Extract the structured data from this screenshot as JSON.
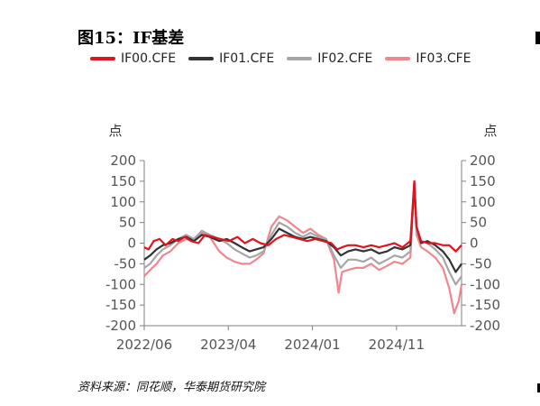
{
  "header": {
    "title": "图15：IF基差"
  },
  "footer": {
    "source": "资料来源：同花顺，华泰期货研究院"
  },
  "chart_data": {
    "type": "line",
    "title": "图15：IF基差",
    "left_unit": "点",
    "right_unit": "点",
    "ylim": [
      -200,
      200
    ],
    "y_ticks": [
      200,
      150,
      100,
      50,
      0,
      -50,
      -100,
      -150,
      -200
    ],
    "x_ticks": [
      "2022/06",
      "2023/04",
      "2024/01",
      "2024/11"
    ],
    "x_domain": [
      "2022-05",
      "2025-03"
    ],
    "legend_position": "top",
    "grid": false,
    "series": [
      {
        "name": "IF00.CFE",
        "color": "#e0141e",
        "points": [
          [
            "2022-05-01",
            -10
          ],
          [
            "2022-05-15",
            -15
          ],
          [
            "2022-06-01",
            5
          ],
          [
            "2022-06-20",
            10
          ],
          [
            "2022-07-10",
            -5
          ],
          [
            "2022-08-01",
            10
          ],
          [
            "2022-08-20",
            5
          ],
          [
            "2022-09-10",
            15
          ],
          [
            "2022-10-01",
            5
          ],
          [
            "2022-10-25",
            0
          ],
          [
            "2022-11-15",
            20
          ],
          [
            "2022-12-10",
            15
          ],
          [
            "2023-01-05",
            10
          ],
          [
            "2023-02-01",
            5
          ],
          [
            "2023-03-01",
            15
          ],
          [
            "2023-03-25",
            0
          ],
          [
            "2023-04-20",
            10
          ],
          [
            "2023-05-15",
            0
          ],
          [
            "2023-06-10",
            -5
          ],
          [
            "2023-07-05",
            10
          ],
          [
            "2023-08-01",
            20
          ],
          [
            "2023-08-25",
            15
          ],
          [
            "2023-09-20",
            10
          ],
          [
            "2023-10-15",
            5
          ],
          [
            "2023-11-10",
            10
          ],
          [
            "2023-12-05",
            5
          ],
          [
            "2024-01-01",
            0
          ],
          [
            "2024-01-20",
            -15
          ],
          [
            "2024-02-05",
            -10
          ],
          [
            "2024-02-25",
            -5
          ],
          [
            "2024-03-20",
            -5
          ],
          [
            "2024-04-15",
            -10
          ],
          [
            "2024-05-10",
            -5
          ],
          [
            "2024-06-05",
            -10
          ],
          [
            "2024-07-01",
            -5
          ],
          [
            "2024-07-25",
            0
          ],
          [
            "2024-08-20",
            -10
          ],
          [
            "2024-09-15",
            5
          ],
          [
            "2024-09-28",
            150
          ],
          [
            "2024-10-05",
            40
          ],
          [
            "2024-10-20",
            5
          ],
          [
            "2024-11-10",
            0
          ],
          [
            "2024-12-05",
            0
          ],
          [
            "2024-12-30",
            -5
          ],
          [
            "2025-01-20",
            -5
          ],
          [
            "2025-02-10",
            -20
          ],
          [
            "2025-03-01",
            -5
          ]
        ]
      },
      {
        "name": "IF01.CFE",
        "color": "#333333",
        "points": [
          [
            "2022-05-01",
            -40
          ],
          [
            "2022-05-20",
            -30
          ],
          [
            "2022-06-10",
            -15
          ],
          [
            "2022-07-01",
            -5
          ],
          [
            "2022-07-25",
            0
          ],
          [
            "2022-08-20",
            10
          ],
          [
            "2022-09-15",
            15
          ],
          [
            "2022-10-10",
            5
          ],
          [
            "2022-11-05",
            20
          ],
          [
            "2022-12-01",
            15
          ],
          [
            "2023-01-01",
            5
          ],
          [
            "2023-01-25",
            10
          ],
          [
            "2023-02-20",
            0
          ],
          [
            "2023-03-15",
            -10
          ],
          [
            "2023-04-10",
            -20
          ],
          [
            "2023-05-01",
            -15
          ],
          [
            "2023-05-25",
            -10
          ],
          [
            "2023-06-20",
            10
          ],
          [
            "2023-07-15",
            35
          ],
          [
            "2023-08-10",
            25
          ],
          [
            "2023-09-05",
            15
          ],
          [
            "2023-10-01",
            10
          ],
          [
            "2023-10-25",
            15
          ],
          [
            "2023-11-20",
            10
          ],
          [
            "2023-12-15",
            5
          ],
          [
            "2024-01-10",
            -10
          ],
          [
            "2024-02-01",
            -30
          ],
          [
            "2024-02-25",
            -20
          ],
          [
            "2024-03-20",
            -15
          ],
          [
            "2024-04-15",
            -20
          ],
          [
            "2024-05-10",
            -15
          ],
          [
            "2024-06-05",
            -25
          ],
          [
            "2024-07-01",
            -20
          ],
          [
            "2024-07-25",
            -10
          ],
          [
            "2024-08-20",
            -15
          ],
          [
            "2024-09-15",
            -5
          ],
          [
            "2024-09-28",
            145
          ],
          [
            "2024-10-05",
            40
          ],
          [
            "2024-10-20",
            0
          ],
          [
            "2024-11-10",
            5
          ],
          [
            "2024-12-05",
            -5
          ],
          [
            "2024-12-30",
            -20
          ],
          [
            "2025-01-20",
            -40
          ],
          [
            "2025-02-10",
            -70
          ],
          [
            "2025-03-01",
            -50
          ]
        ]
      },
      {
        "name": "IF02.CFE",
        "color": "#a6a6a6",
        "points": [
          [
            "2022-05-01",
            -60
          ],
          [
            "2022-05-20",
            -50
          ],
          [
            "2022-06-10",
            -30
          ],
          [
            "2022-07-01",
            -15
          ],
          [
            "2022-07-25",
            -5
          ],
          [
            "2022-08-20",
            10
          ],
          [
            "2022-09-15",
            20
          ],
          [
            "2022-10-10",
            10
          ],
          [
            "2022-11-05",
            30
          ],
          [
            "2022-12-01",
            20
          ],
          [
            "2023-01-01",
            10
          ],
          [
            "2023-01-25",
            0
          ],
          [
            "2023-02-20",
            -15
          ],
          [
            "2023-03-15",
            -25
          ],
          [
            "2023-04-10",
            -35
          ],
          [
            "2023-05-01",
            -30
          ],
          [
            "2023-05-25",
            -20
          ],
          [
            "2023-06-20",
            20
          ],
          [
            "2023-07-15",
            50
          ],
          [
            "2023-08-10",
            40
          ],
          [
            "2023-09-05",
            25
          ],
          [
            "2023-10-01",
            15
          ],
          [
            "2023-10-25",
            25
          ],
          [
            "2023-11-20",
            15
          ],
          [
            "2023-12-15",
            10
          ],
          [
            "2024-01-10",
            -30
          ],
          [
            "2024-02-01",
            -60
          ],
          [
            "2024-02-25",
            -40
          ],
          [
            "2024-03-20",
            -40
          ],
          [
            "2024-04-15",
            -45
          ],
          [
            "2024-05-10",
            -35
          ],
          [
            "2024-06-05",
            -50
          ],
          [
            "2024-07-01",
            -40
          ],
          [
            "2024-07-25",
            -30
          ],
          [
            "2024-08-20",
            -35
          ],
          [
            "2024-09-15",
            -20
          ],
          [
            "2024-09-28",
            140
          ],
          [
            "2024-10-05",
            30
          ],
          [
            "2024-10-20",
            5
          ],
          [
            "2024-11-10",
            0
          ],
          [
            "2024-12-05",
            -15
          ],
          [
            "2024-12-30",
            -35
          ],
          [
            "2025-01-20",
            -70
          ],
          [
            "2025-02-10",
            -100
          ],
          [
            "2025-03-01",
            -80
          ]
        ]
      },
      {
        "name": "IF03.CFE",
        "color": "#f0868f",
        "points": [
          [
            "2022-05-01",
            -80
          ],
          [
            "2022-05-20",
            -65
          ],
          [
            "2022-06-10",
            -50
          ],
          [
            "2022-07-01",
            -30
          ],
          [
            "2022-07-25",
            -20
          ],
          [
            "2022-08-20",
            0
          ],
          [
            "2022-09-15",
            10
          ],
          [
            "2022-10-10",
            5
          ],
          [
            "2022-11-05",
            25
          ],
          [
            "2022-12-01",
            15
          ],
          [
            "2023-01-01",
            -20
          ],
          [
            "2023-01-25",
            -35
          ],
          [
            "2023-02-20",
            -45
          ],
          [
            "2023-03-15",
            -50
          ],
          [
            "2023-04-10",
            -50
          ],
          [
            "2023-05-01",
            -40
          ],
          [
            "2023-05-25",
            -25
          ],
          [
            "2023-06-20",
            40
          ],
          [
            "2023-07-15",
            65
          ],
          [
            "2023-08-10",
            55
          ],
          [
            "2023-09-05",
            40
          ],
          [
            "2023-10-01",
            25
          ],
          [
            "2023-10-25",
            35
          ],
          [
            "2023-11-20",
            20
          ],
          [
            "2023-12-15",
            10
          ],
          [
            "2024-01-10",
            -40
          ],
          [
            "2024-01-25",
            -120
          ],
          [
            "2024-02-05",
            -70
          ],
          [
            "2024-02-25",
            -65
          ],
          [
            "2024-03-20",
            -60
          ],
          [
            "2024-04-15",
            -60
          ],
          [
            "2024-05-10",
            -50
          ],
          [
            "2024-06-05",
            -65
          ],
          [
            "2024-07-01",
            -55
          ],
          [
            "2024-07-25",
            -45
          ],
          [
            "2024-08-20",
            -50
          ],
          [
            "2024-09-15",
            -35
          ],
          [
            "2024-09-28",
            150
          ],
          [
            "2024-10-05",
            20
          ],
          [
            "2024-10-20",
            -10
          ],
          [
            "2024-11-10",
            -20
          ],
          [
            "2024-12-05",
            -35
          ],
          [
            "2024-12-30",
            -60
          ],
          [
            "2025-01-20",
            -110
          ],
          [
            "2025-02-05",
            -170
          ],
          [
            "2025-02-20",
            -140
          ],
          [
            "2025-03-01",
            -100
          ]
        ]
      }
    ]
  }
}
